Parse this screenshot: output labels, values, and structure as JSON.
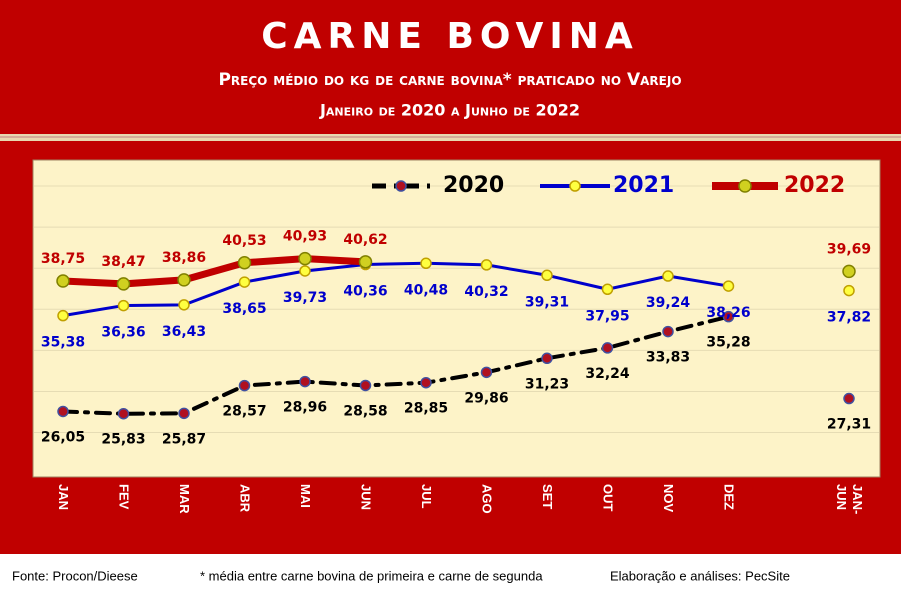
{
  "chart_data": {
    "type": "line",
    "title": "CARNE BOVINA",
    "subtitle": "Preço médio do kg de carne bovina* praticado no Varejo",
    "subtitle2": "Janeiro de 2020 a Junho de 2022",
    "categories": [
      "JAN",
      "FEV",
      "MAR",
      "ABR",
      "MAI",
      "JUN",
      "JUL",
      "AGO",
      "SET",
      "OUT",
      "NOV",
      "DEZ",
      "JAN-JUN"
    ],
    "series": [
      {
        "name": "2020",
        "color": "#000000",
        "marker_color": "#b01020",
        "values": [
          26.05,
          25.83,
          25.87,
          28.57,
          28.96,
          28.58,
          28.85,
          29.86,
          31.23,
          32.24,
          33.83,
          35.28,
          27.31
        ],
        "value_labels": [
          "26,05",
          "25,83",
          "25,87",
          "28,57",
          "28,96",
          "28,58",
          "28,85",
          "29,86",
          "31,23",
          "32,24",
          "33,83",
          "35,28",
          "27,31"
        ]
      },
      {
        "name": "2021",
        "color": "#0000cc",
        "marker_color": "#ffff40",
        "values": [
          35.38,
          36.36,
          36.43,
          38.65,
          39.73,
          40.36,
          40.48,
          40.32,
          39.31,
          37.95,
          39.24,
          38.26,
          37.82
        ],
        "value_labels": [
          "35,38",
          "36,36",
          "36,43",
          "38,65",
          "39,73",
          "40,36",
          "40,48",
          "40,32",
          "39,31",
          "37,95",
          "39,24",
          "38,26",
          "37,82"
        ]
      },
      {
        "name": "2022",
        "color": "#c00000",
        "marker_color": "#d0d020",
        "values": [
          38.75,
          38.47,
          38.86,
          40.53,
          40.93,
          40.62,
          null,
          null,
          null,
          null,
          null,
          null,
          39.69
        ],
        "value_labels": [
          "38,75",
          "38,47",
          "38,86",
          "40,53",
          "40,93",
          "40,62",
          null,
          null,
          null,
          null,
          null,
          null,
          "39,69"
        ]
      }
    ],
    "ylim": [
      20,
      50
    ],
    "yticks": [
      24,
      28,
      32,
      36,
      40,
      44,
      48
    ],
    "grid": true,
    "legend": "top"
  },
  "footer": {
    "source": "Fonte: Procon/Dieese",
    "note": "* média entre carne bovina de primeira e carne de segunda",
    "credit": "Elaboração e análises: PecSite"
  }
}
